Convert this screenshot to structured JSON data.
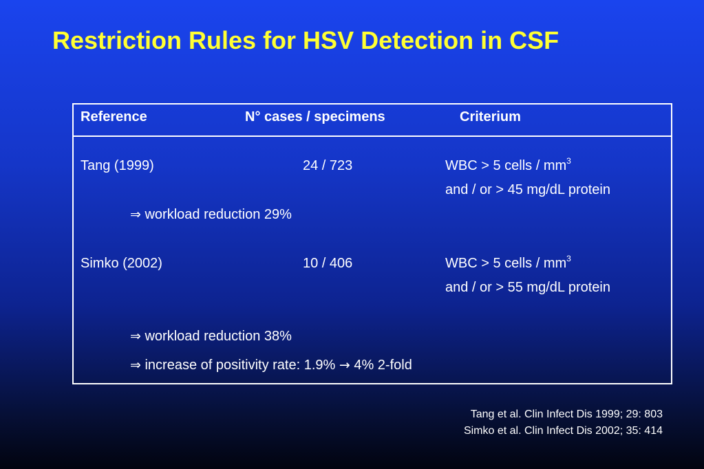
{
  "slide": {
    "title": "Restriction Rules for HSV Detection in CSF"
  },
  "table": {
    "headers": {
      "reference": "Reference",
      "cases": "N° cases / specimens",
      "criterium": "Criterium"
    },
    "rows": [
      {
        "reference": "Tang (1999)",
        "cases": "24 / 723",
        "criterion_line1": "WBC > 5 cells / mm",
        "criterion_sup": "3",
        "criterion_line2": "and / or > 45 mg/dL protein",
        "outcomes": [
          "workload reduction 29%"
        ]
      },
      {
        "reference": "Simko (2002)",
        "cases": "10 / 406",
        "criterion_line1": "WBC > 5 cells / mm",
        "criterion_sup": "3",
        "criterion_line2": "and / or > 55 mg/dL protein",
        "outcomes": [
          "workload reduction 38%"
        ],
        "positivity": {
          "prefix": "increase of positivity rate: 1.9%",
          "suffix": "4% 2-fold"
        }
      }
    ],
    "symbols": {
      "implies": "⇒",
      "arrow": "→"
    }
  },
  "citations": [
    "Tang et al. Clin Infect Dis 1999; 29: 803",
    "Simko et al. Clin Infect Dis 2002; 35: 414"
  ],
  "colors": {
    "title": "#ffff33",
    "text": "#ffffff",
    "background_top": "#1a44ee",
    "background_bottom": "#02040f"
  }
}
